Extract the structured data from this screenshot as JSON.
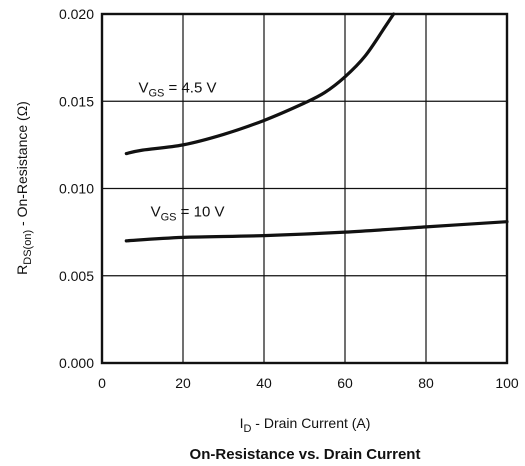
{
  "chart_data": {
    "type": "line",
    "title": "On-Resistance vs. Drain Current",
    "xlabel": "I_D - Drain Current (A)",
    "ylabel": "R_DS(on) - On-Resistance (Ω)",
    "xlim": [
      0,
      100
    ],
    "ylim": [
      0,
      0.02
    ],
    "xticks": [
      "0",
      "20",
      "40",
      "60",
      "80",
      "100"
    ],
    "yticks": [
      "0.000",
      "0.005",
      "0.010",
      "0.015",
      "0.020"
    ],
    "grid": true,
    "series": [
      {
        "name": "VGS = 4.5 V",
        "x": [
          6,
          10,
          20,
          30,
          40,
          50,
          55,
          60,
          65,
          70,
          72
        ],
        "y": [
          0.012,
          0.0122,
          0.0125,
          0.0131,
          0.0139,
          0.0149,
          0.0155,
          0.0164,
          0.0176,
          0.0193,
          0.02
        ]
      },
      {
        "name": "VGS = 10 V",
        "x": [
          6,
          20,
          40,
          60,
          80,
          100
        ],
        "y": [
          0.007,
          0.0072,
          0.0073,
          0.0075,
          0.0078,
          0.0081
        ]
      }
    ],
    "annotations": [
      {
        "series": 0,
        "main": "V",
        "sub": "GS",
        "rest": " = 4.5 V",
        "x": 9,
        "y": 0.0155
      },
      {
        "series": 1,
        "main": "V",
        "sub": "GS",
        "rest": " = 10 V",
        "x": 12,
        "y": 0.0084
      }
    ]
  }
}
